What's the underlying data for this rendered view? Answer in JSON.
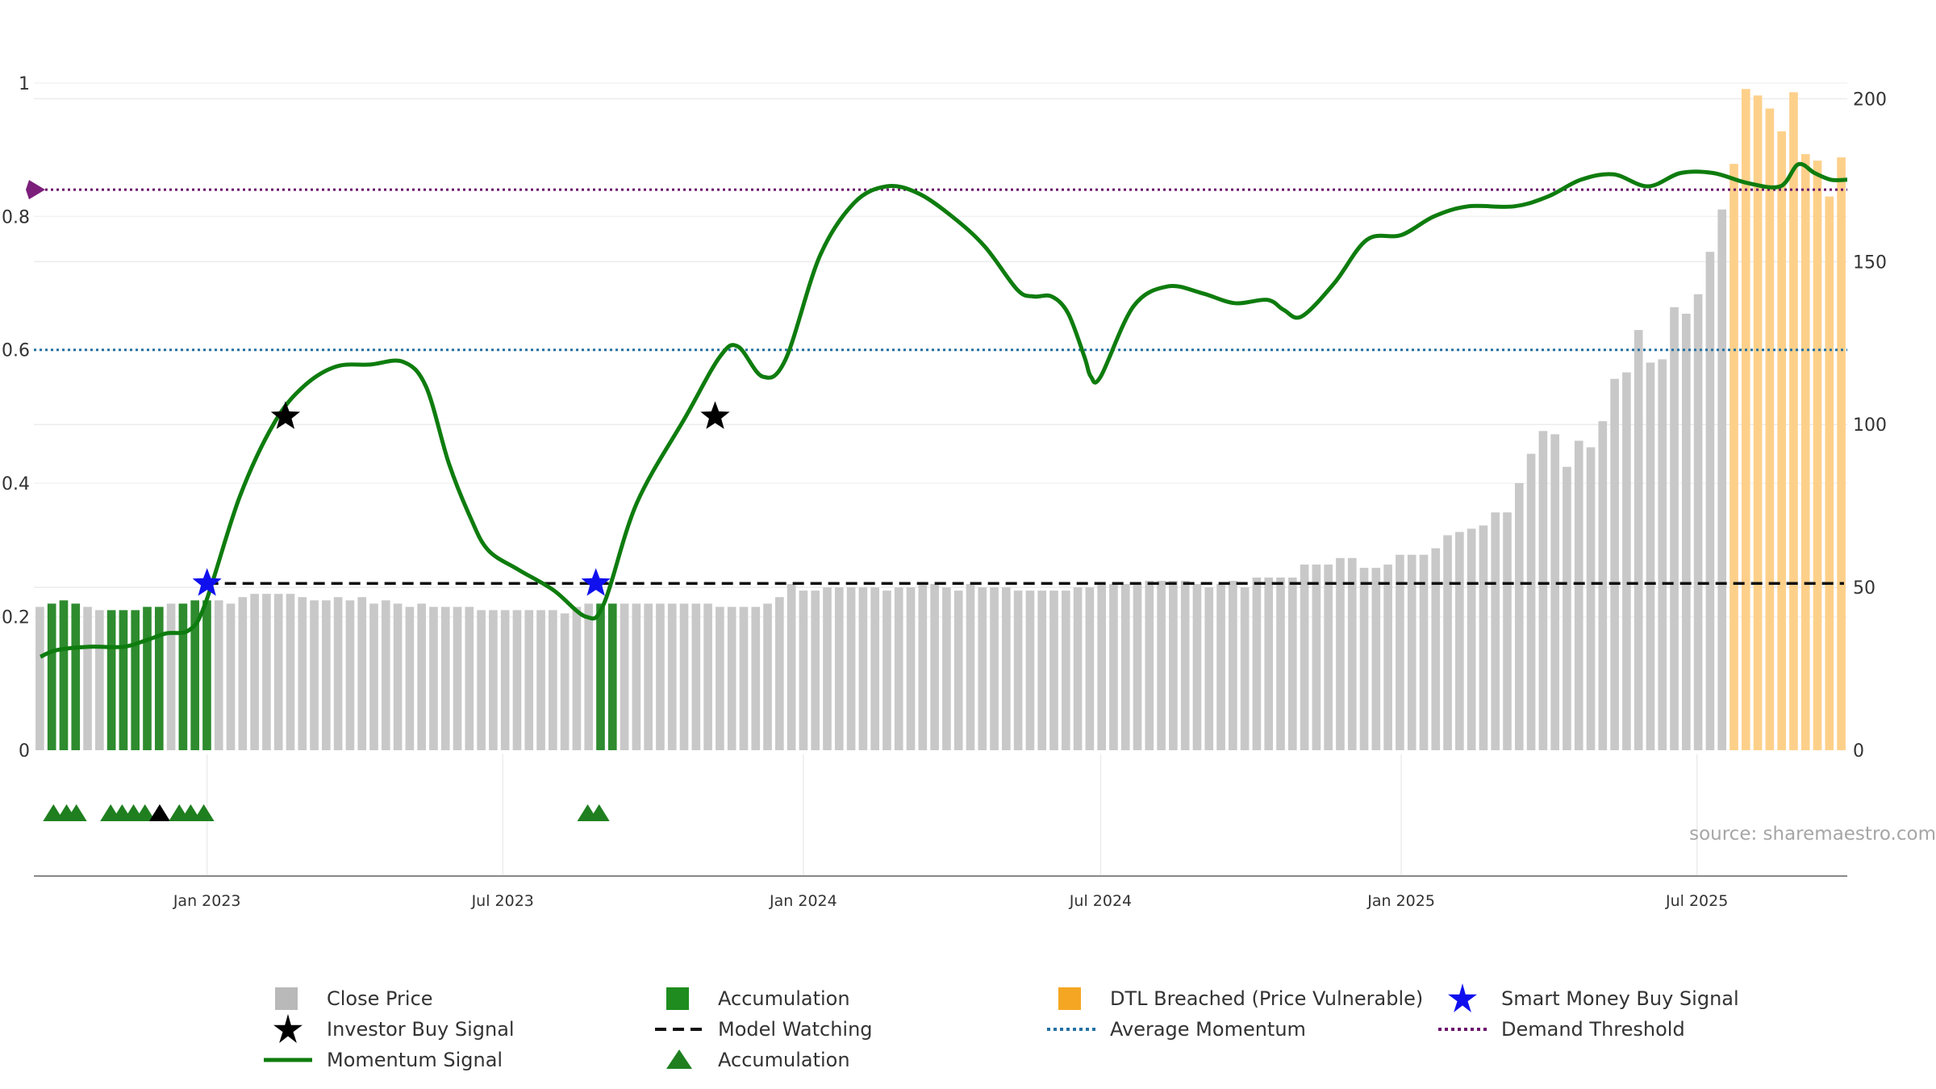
{
  "source_note": "source: sharemaestro.com",
  "chart_data": {
    "type": "bar",
    "x_axis": {
      "tick_labels": [
        "Jan 2023",
        "Jul 2023",
        "Jan 2024",
        "Jul 2024",
        "Jan 2025",
        "Jul 2025"
      ],
      "tick_dates": [
        "2023-01-01",
        "2023-07-01",
        "2024-01-01",
        "2024-07-01",
        "2025-01-01",
        "2025-07-01"
      ],
      "range": [
        "2022-09-17",
        "2025-10-01"
      ]
    },
    "y_left": {
      "ticks": [
        0,
        0.2,
        0.4,
        0.6,
        0.8,
        1
      ],
      "tick_labels": [
        "0",
        "0.2",
        "0.4",
        "0.6",
        "0.8",
        "1"
      ],
      "range": [
        0,
        1.03
      ]
    },
    "y_right": {
      "ticks": [
        0,
        50,
        100,
        150,
        200
      ],
      "tick_labels": [
        "0",
        "50",
        "100",
        "150",
        "200"
      ],
      "range": [
        0,
        211
      ]
    },
    "grid": true,
    "colors": {
      "close_price": "#c8c8c8",
      "accumulation": "#2e8b2e",
      "dtl_breached": "#fdd08a",
      "momentum": "#0e7c0e",
      "model_watching": "#111111",
      "average_momentum": "#2471a3",
      "demand_threshold": "#6b0f6b",
      "smart_money": "#1010ee",
      "investor": "#000000",
      "accum_triangle": "#1f7f1f",
      "threshold_marker": "#7b1f7b"
    },
    "close_price_weekly": [
      44,
      45,
      46,
      45,
      44,
      43,
      43,
      43,
      43,
      44,
      44,
      45,
      45,
      46,
      46,
      46,
      45,
      47,
      48,
      48,
      48,
      48,
      47,
      46,
      46,
      47,
      46,
      47,
      45,
      46,
      45,
      44,
      45,
      44,
      44,
      44,
      44,
      43,
      43,
      43,
      43,
      43,
      43,
      43,
      42,
      44,
      45,
      45,
      45,
      45,
      45,
      45,
      45,
      45,
      45,
      45,
      45,
      44,
      44,
      44,
      44,
      45,
      47,
      51,
      49,
      49,
      50,
      50,
      50,
      50,
      50,
      49,
      50,
      50,
      51,
      51,
      50,
      49,
      51,
      50,
      50,
      50,
      49,
      49,
      49,
      49,
      49,
      50,
      50,
      51,
      51,
      51,
      51,
      52,
      52,
      52,
      52,
      51,
      50,
      51,
      52,
      50,
      53,
      53,
      53,
      53,
      57,
      57,
      57,
      59,
      59,
      56,
      56,
      57,
      60,
      60,
      60,
      62,
      66,
      67,
      68,
      69,
      73,
      73,
      82,
      91,
      98,
      97,
      87,
      95,
      93,
      101,
      114,
      116,
      129,
      119,
      120,
      136,
      134,
      140,
      153,
      166,
      180,
      203,
      201,
      197,
      190,
      202,
      183,
      181,
      170,
      182
    ],
    "accumulation_weeks": [
      1,
      2,
      3,
      6,
      7,
      8,
      9,
      10,
      12,
      13,
      14,
      47,
      48
    ],
    "dtl_breached_weeks": [
      142,
      143,
      144,
      145,
      146,
      147,
      148,
      149,
      150,
      151
    ],
    "momentum_signal": [
      [
        "2022-09-21",
        0.14
      ],
      [
        "2022-10-01",
        0.15
      ],
      [
        "2022-10-21",
        0.155
      ],
      [
        "2022-11-11",
        0.155
      ],
      [
        "2022-11-25",
        0.165
      ],
      [
        "2022-12-07",
        0.175
      ],
      [
        "2022-12-21",
        0.18
      ],
      [
        "2022-12-31",
        0.22
      ],
      [
        "2023-01-21",
        0.38
      ],
      [
        "2023-02-11",
        0.49
      ],
      [
        "2023-03-01",
        0.545
      ],
      [
        "2023-03-21",
        0.575
      ],
      [
        "2023-04-11",
        0.578
      ],
      [
        "2023-05-01",
        0.582
      ],
      [
        "2023-05-15",
        0.545
      ],
      [
        "2023-05-29",
        0.43
      ],
      [
        "2023-06-11",
        0.35
      ],
      [
        "2023-06-22",
        0.3
      ],
      [
        "2023-07-11",
        0.27
      ],
      [
        "2023-08-01",
        0.24
      ],
      [
        "2023-08-21",
        0.2
      ],
      [
        "2023-09-01",
        0.22
      ],
      [
        "2023-09-21",
        0.37
      ],
      [
        "2023-10-21",
        0.5
      ],
      [
        "2023-11-11",
        0.59
      ],
      [
        "2023-11-22",
        0.605
      ],
      [
        "2023-12-07",
        0.56
      ],
      [
        "2023-12-21",
        0.585
      ],
      [
        "2024-01-11",
        0.74
      ],
      [
        "2024-02-01",
        0.82
      ],
      [
        "2024-02-21",
        0.845
      ],
      [
        "2024-03-11",
        0.835
      ],
      [
        "2024-04-01",
        0.8
      ],
      [
        "2024-04-21",
        0.755
      ],
      [
        "2024-05-11",
        0.69
      ],
      [
        "2024-05-21",
        0.68
      ],
      [
        "2024-06-01",
        0.68
      ],
      [
        "2024-06-11",
        0.655
      ],
      [
        "2024-06-21",
        0.59
      ],
      [
        "2024-06-25",
        0.56
      ],
      [
        "2024-07-01",
        0.56
      ],
      [
        "2024-07-21",
        0.665
      ],
      [
        "2024-08-11",
        0.695
      ],
      [
        "2024-09-01",
        0.685
      ],
      [
        "2024-09-21",
        0.67
      ],
      [
        "2024-10-11",
        0.675
      ],
      [
        "2024-10-21",
        0.66
      ],
      [
        "2024-11-01",
        0.65
      ],
      [
        "2024-11-21",
        0.7
      ],
      [
        "2024-12-11",
        0.765
      ],
      [
        "2025-01-01",
        0.772
      ],
      [
        "2025-01-21",
        0.8
      ],
      [
        "2025-02-11",
        0.815
      ],
      [
        "2025-03-11",
        0.815
      ],
      [
        "2025-04-01",
        0.83
      ],
      [
        "2025-04-21",
        0.855
      ],
      [
        "2025-05-11",
        0.863
      ],
      [
        "2025-06-01",
        0.845
      ],
      [
        "2025-06-21",
        0.865
      ],
      [
        "2025-07-11",
        0.865
      ],
      [
        "2025-08-01",
        0.85
      ],
      [
        "2025-08-21",
        0.845
      ],
      [
        "2025-09-01",
        0.878
      ],
      [
        "2025-09-11",
        0.865
      ],
      [
        "2025-09-21",
        0.855
      ],
      [
        "2025-10-01",
        0.855
      ]
    ],
    "average_momentum": 0.6,
    "demand_threshold": 0.84,
    "model_watching": {
      "level": 0.25,
      "from": "2023-01-01",
      "to": "2025-09-29"
    },
    "smart_money_buy_signals": [
      [
        "2023-01-01",
        0.25
      ],
      [
        "2023-08-27",
        0.25
      ]
    ],
    "investor_buy_signals": [
      [
        "2023-02-18",
        0.5
      ],
      [
        "2023-11-08",
        0.5
      ]
    ],
    "accumulation_markers": [
      [
        "2022-09-29",
        "accumulation"
      ],
      [
        "2022-10-07",
        "accumulation"
      ],
      [
        "2022-10-13",
        "accumulation"
      ],
      [
        "2022-11-03",
        "accumulation"
      ],
      [
        "2022-11-10",
        "accumulation"
      ],
      [
        "2022-11-17",
        "accumulation"
      ],
      [
        "2022-11-24",
        "accumulation"
      ],
      [
        "2022-12-03",
        "other"
      ],
      [
        "2022-12-15",
        "accumulation"
      ],
      [
        "2022-12-22",
        "accumulation"
      ],
      [
        "2022-12-30",
        "accumulation"
      ],
      [
        "2023-08-22",
        "accumulation"
      ],
      [
        "2023-08-29",
        "accumulation"
      ]
    ],
    "demand_threshold_marker": [
      "2022-09-18",
      0.84
    ],
    "legend": [
      {
        "label": "Close Price",
        "symbol": "square",
        "color": "#b9b9b9"
      },
      {
        "label": "Accumulation",
        "symbol": "square",
        "color": "#1e8c1e"
      },
      {
        "label": "DTL Breached (Price Vulnerable)",
        "symbol": "square",
        "color": "#f5a623"
      },
      {
        "label": "Smart Money Buy Signal",
        "symbol": "star",
        "color": "#1010ee"
      },
      {
        "label": "Investor Buy Signal",
        "symbol": "star",
        "color": "#000000"
      },
      {
        "label": "Model Watching",
        "symbol": "dash",
        "color": "#111111"
      },
      {
        "label": "Average Momentum",
        "symbol": "dot",
        "color": "#2471a3"
      },
      {
        "label": "Demand Threshold",
        "symbol": "dot",
        "color": "#6b0f6b"
      },
      {
        "label": "Momentum Signal",
        "symbol": "line",
        "color": "#0e7c0e"
      },
      {
        "label": "Accumulation",
        "symbol": "triangle",
        "color": "#1f7f1f"
      }
    ]
  }
}
